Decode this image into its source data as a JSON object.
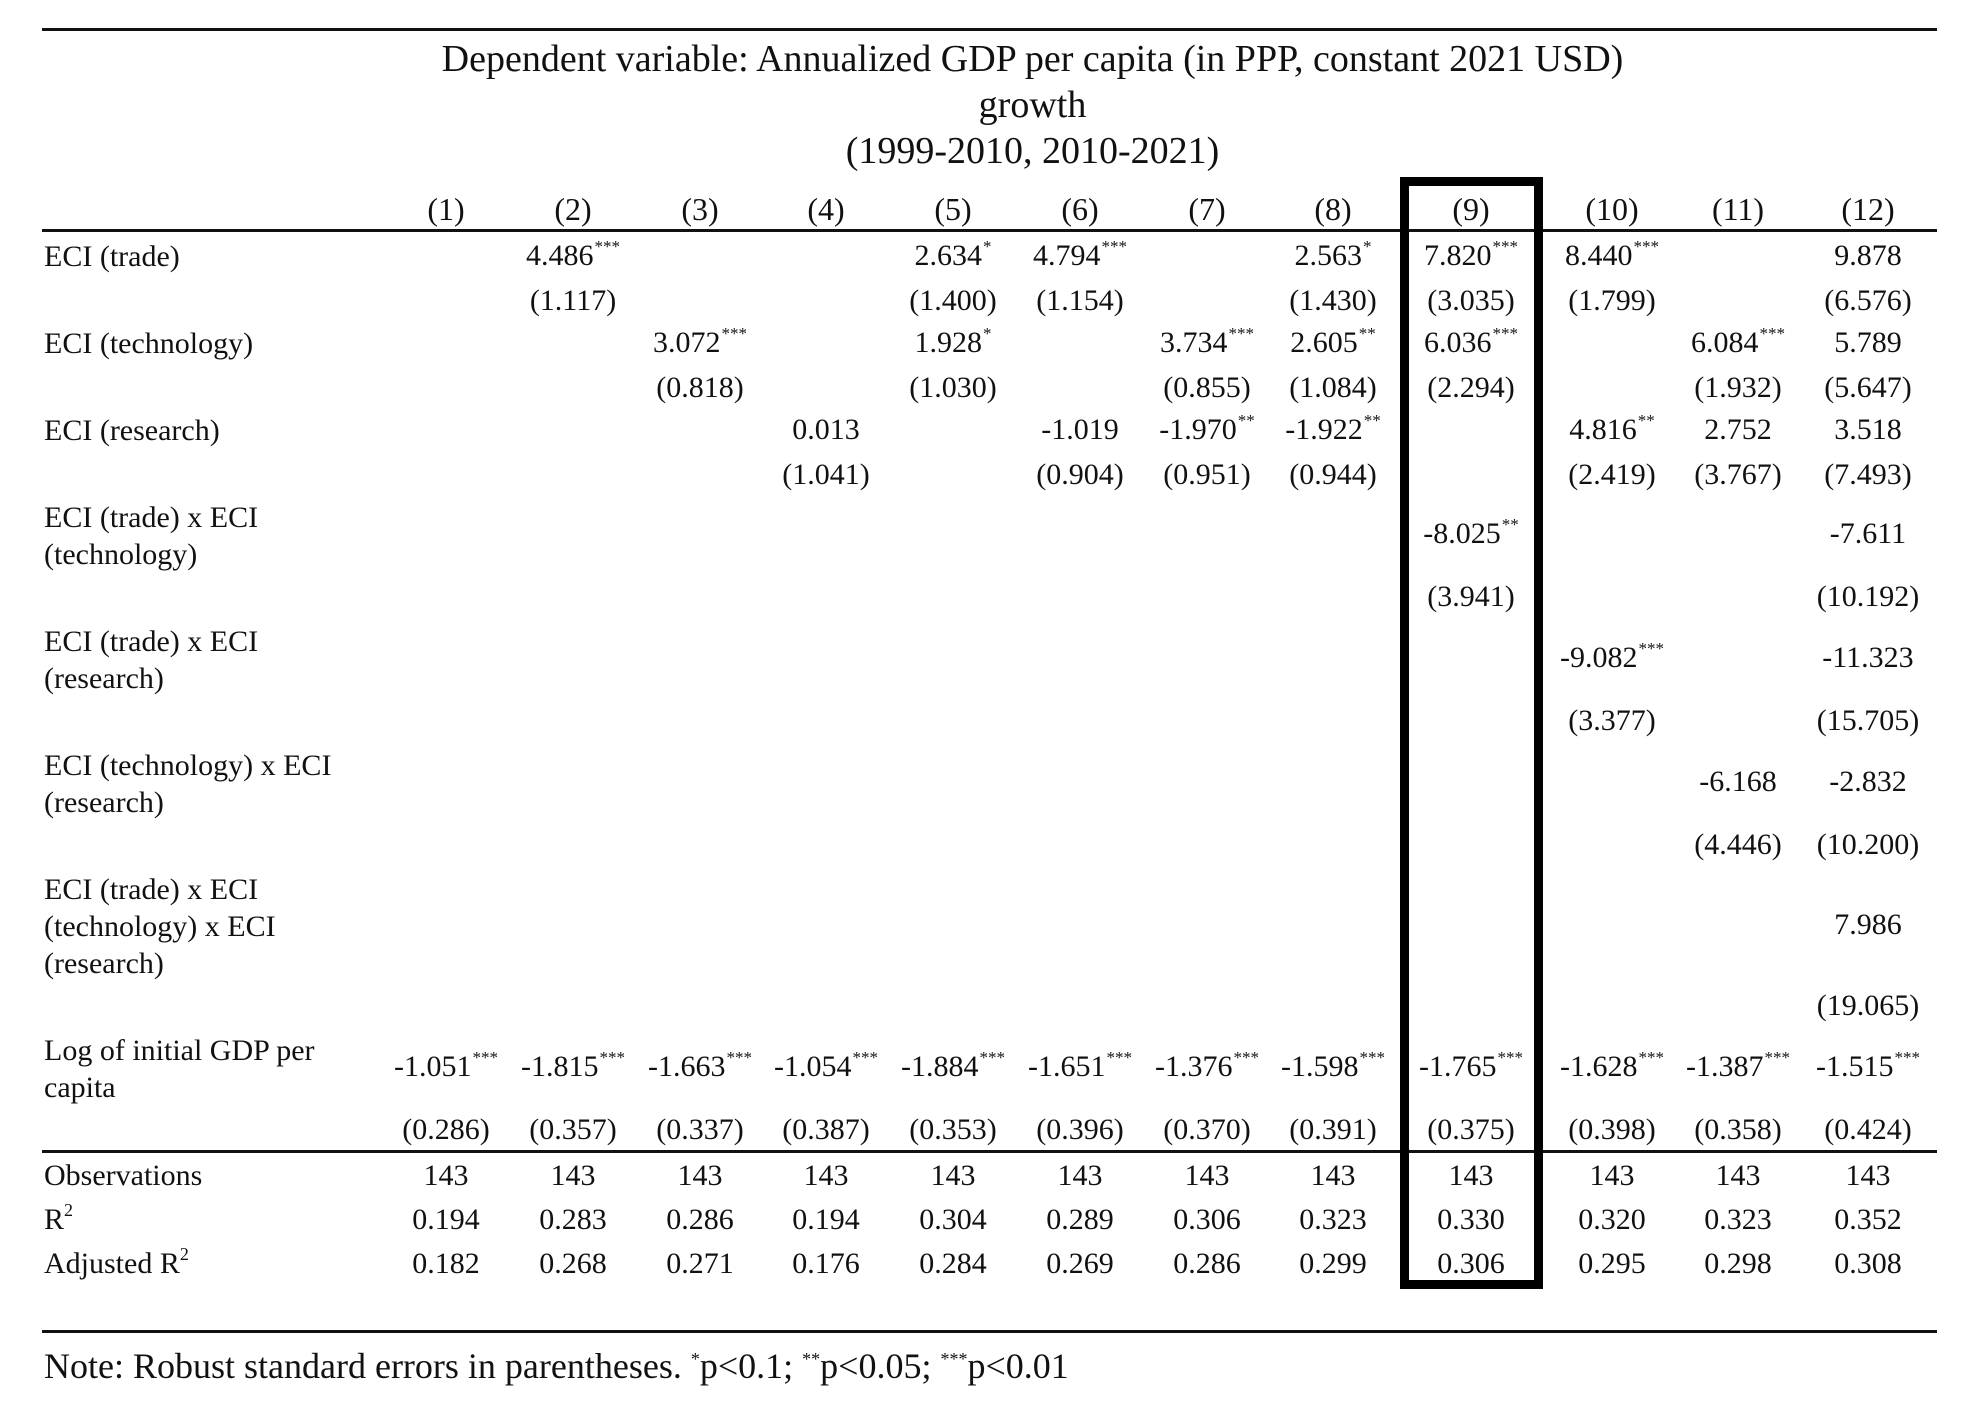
{
  "header": {
    "dependent_variable": "Dependent variable: Annualized GDP per capita (in PPP, constant 2021 USD) growth",
    "period": "(1999-2010, 2010-2021)",
    "columns": [
      "(1)",
      "(2)",
      "(3)",
      "(4)",
      "(5)",
      "(6)",
      "(7)",
      "(8)",
      "(9)",
      "(10)",
      "(11)",
      "(12)"
    ],
    "highlighted_column": "(9)"
  },
  "rows": {
    "eci_trade": {
      "label": "ECI (trade)",
      "coef": [
        "",
        "4.486",
        "",
        "",
        "2.634",
        "4.794",
        "",
        "2.563",
        "7.820",
        "8.440",
        "",
        "9.878"
      ],
      "stars": [
        "",
        "***",
        "",
        "",
        "*",
        "***",
        "",
        "*",
        "***",
        "***",
        "",
        ""
      ],
      "se": [
        "",
        "(1.117)",
        "",
        "",
        "(1.400)",
        "(1.154)",
        "",
        "(1.430)",
        "(3.035)",
        "(1.799)",
        "",
        "(6.576)"
      ]
    },
    "eci_technology": {
      "label": "ECI (technology)",
      "coef": [
        "",
        "",
        "3.072",
        "",
        "1.928",
        "",
        "3.734",
        "2.605",
        "6.036",
        "",
        "6.084",
        "5.789"
      ],
      "stars": [
        "",
        "",
        "***",
        "",
        "*",
        "",
        "***",
        "**",
        "***",
        "",
        "***",
        ""
      ],
      "se": [
        "",
        "",
        "(0.818)",
        "",
        "(1.030)",
        "",
        "(0.855)",
        "(1.084)",
        "(2.294)",
        "",
        "(1.932)",
        "(5.647)"
      ]
    },
    "eci_research": {
      "label": "ECI (research)",
      "coef": [
        "",
        "",
        "",
        "0.013",
        "",
        "-1.019",
        "-1.970",
        "-1.922",
        "",
        "4.816",
        "2.752",
        "3.518"
      ],
      "stars": [
        "",
        "",
        "",
        "",
        "",
        "",
        "**",
        "**",
        "",
        "**",
        "",
        ""
      ],
      "se": [
        "",
        "",
        "",
        "(1.041)",
        "",
        "(0.904)",
        "(0.951)",
        "(0.944)",
        "",
        "(2.419)",
        "(3.767)",
        "(7.493)"
      ]
    },
    "trade_x_technology": {
      "label_lines": [
        "ECI (trade) x ECI",
        "(technology)"
      ],
      "coef": [
        "",
        "",
        "",
        "",
        "",
        "",
        "",
        "",
        "-8.025",
        "",
        "",
        "-7.611"
      ],
      "stars": [
        "",
        "",
        "",
        "",
        "",
        "",
        "",
        "",
        "**",
        "",
        "",
        ""
      ],
      "se": [
        "",
        "",
        "",
        "",
        "",
        "",
        "",
        "",
        "(3.941)",
        "",
        "",
        "(10.192)"
      ]
    },
    "trade_x_research": {
      "label_lines": [
        "ECI (trade) x ECI",
        "(research)"
      ],
      "coef": [
        "",
        "",
        "",
        "",
        "",
        "",
        "",
        "",
        "",
        "-9.082",
        "",
        "-11.323"
      ],
      "stars": [
        "",
        "",
        "",
        "",
        "",
        "",
        "",
        "",
        "",
        "***",
        "",
        ""
      ],
      "se": [
        "",
        "",
        "",
        "",
        "",
        "",
        "",
        "",
        "",
        "(3.377)",
        "",
        "(15.705)"
      ]
    },
    "technology_x_research": {
      "label_lines": [
        "ECI (technology) x ECI",
        "(research)"
      ],
      "coef": [
        "",
        "",
        "",
        "",
        "",
        "",
        "",
        "",
        "",
        "",
        "-6.168",
        "-2.832"
      ],
      "stars": [
        "",
        "",
        "",
        "",
        "",
        "",
        "",
        "",
        "",
        "",
        "",
        ""
      ],
      "se": [
        "",
        "",
        "",
        "",
        "",
        "",
        "",
        "",
        "",
        "",
        "(4.446)",
        "(10.200)"
      ]
    },
    "triple_interaction": {
      "label_lines": [
        "ECI (trade) x ECI",
        "(technology) x ECI",
        "(research)"
      ],
      "coef": [
        "",
        "",
        "",
        "",
        "",
        "",
        "",
        "",
        "",
        "",
        "",
        "7.986"
      ],
      "stars": [
        "",
        "",
        "",
        "",
        "",
        "",
        "",
        "",
        "",
        "",
        "",
        ""
      ],
      "se": [
        "",
        "",
        "",
        "",
        "",
        "",
        "",
        "",
        "",
        "",
        "",
        "(19.065)"
      ]
    },
    "log_gdp": {
      "label_lines": [
        "Log of initial GDP per",
        "capita"
      ],
      "coef": [
        "-1.051",
        "-1.815",
        "-1.663",
        "-1.054",
        "-1.884",
        "-1.651",
        "-1.376",
        "-1.598",
        "-1.765",
        "-1.628",
        "-1.387",
        "-1.515"
      ],
      "stars": [
        "***",
        "***",
        "***",
        "***",
        "***",
        "***",
        "***",
        "***",
        "***",
        "***",
        "***",
        "***"
      ],
      "se": [
        "(0.286)",
        "(0.357)",
        "(0.337)",
        "(0.387)",
        "(0.353)",
        "(0.396)",
        "(0.370)",
        "(0.391)",
        "(0.375)",
        "(0.398)",
        "(0.358)",
        "(0.424)"
      ]
    }
  },
  "stats": {
    "observations": {
      "label": "Observations",
      "values": [
        "143",
        "143",
        "143",
        "143",
        "143",
        "143",
        "143",
        "143",
        "143",
        "143",
        "143",
        "143"
      ]
    },
    "r2": {
      "label": "R",
      "label_sup": "2",
      "values": [
        "0.194",
        "0.283",
        "0.286",
        "0.194",
        "0.304",
        "0.289",
        "0.306",
        "0.323",
        "0.330",
        "0.320",
        "0.323",
        "0.352"
      ]
    },
    "adj_r2": {
      "label": "Adjusted R",
      "label_sup": "2",
      "values": [
        "0.182",
        "0.268",
        "0.271",
        "0.176",
        "0.284",
        "0.269",
        "0.286",
        "0.299",
        "0.306",
        "0.295",
        "0.298",
        "0.308"
      ]
    }
  },
  "note": {
    "prefix": "Note: Robust standard errors in parentheses. ",
    "s1": "*",
    "t1": "p<0.1; ",
    "s2": "**",
    "t2": "p<0.05; ",
    "s3": "***",
    "t3": "p<0.01"
  }
}
